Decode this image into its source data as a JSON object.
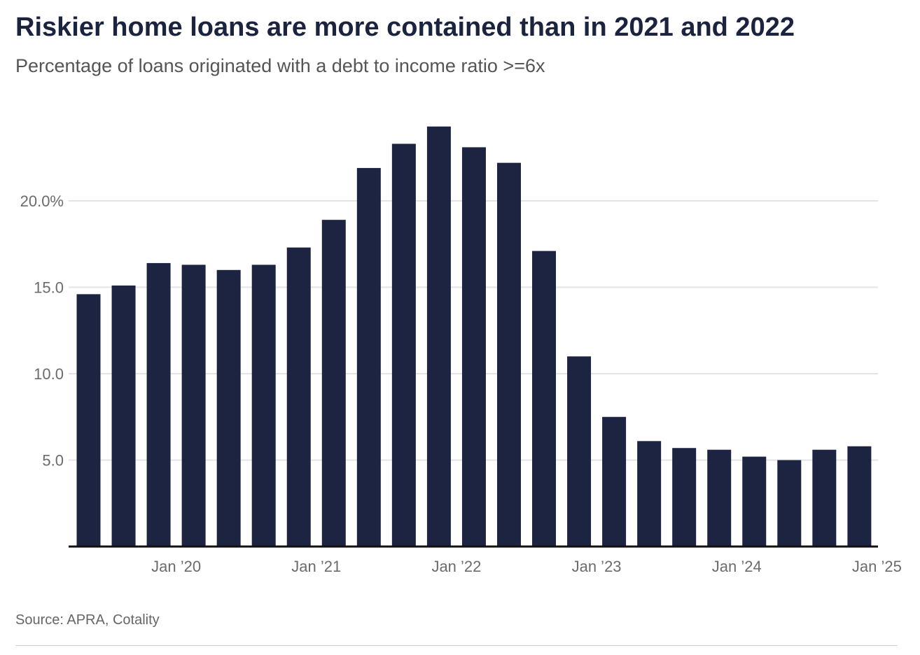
{
  "title": "Riskier home loans are more contained than in 2021 and 2022",
  "subtitle": "Percentage of loans originated with a debt to income ratio >=6x",
  "source": "Source: APRA, Cotality",
  "colors": {
    "bar": "#1c2442",
    "grid": "#e4e4e4",
    "axis": "#111111",
    "title": "#1b233f"
  },
  "chart_data": {
    "type": "bar",
    "categories": [
      "Jun 2019",
      "Sep 2019",
      "Dec 2019",
      "Mar 2020",
      "Jun 2020",
      "Sep 2020",
      "Dec 2020",
      "Mar 2021",
      "Jun 2021",
      "Sep 2021",
      "Dec 2021",
      "Mar 2022",
      "Jun 2022",
      "Sep 2022",
      "Dec 2022",
      "Mar 2023",
      "Jun 2023",
      "Sep 2023",
      "Dec 2023",
      "Mar 2024",
      "Jun 2024",
      "Sep 2024",
      "Dec 2024"
    ],
    "values": [
      14.6,
      15.1,
      16.4,
      16.3,
      16.0,
      16.3,
      17.3,
      18.9,
      21.9,
      23.3,
      24.3,
      23.1,
      22.2,
      17.1,
      11.0,
      7.5,
      6.1,
      5.7,
      5.6,
      5.2,
      5.0,
      5.6,
      5.8
    ],
    "ylim": [
      0,
      25
    ],
    "yticks": [
      {
        "value": 5,
        "label": "5.0"
      },
      {
        "value": 10,
        "label": "10.0"
      },
      {
        "value": 15,
        "label": "15.0"
      },
      {
        "value": 20,
        "label": "20.0%"
      }
    ],
    "xticks": [
      {
        "after_index": 2,
        "label": "Jan ’20"
      },
      {
        "after_index": 6,
        "label": "Jan ’21"
      },
      {
        "after_index": 10,
        "label": "Jan ’22"
      },
      {
        "after_index": 14,
        "label": "Jan ’23"
      },
      {
        "after_index": 18,
        "label": "Jan ’24"
      },
      {
        "after_index": 22,
        "label": "Jan ’25"
      }
    ],
    "grid": true,
    "legend": "none"
  }
}
